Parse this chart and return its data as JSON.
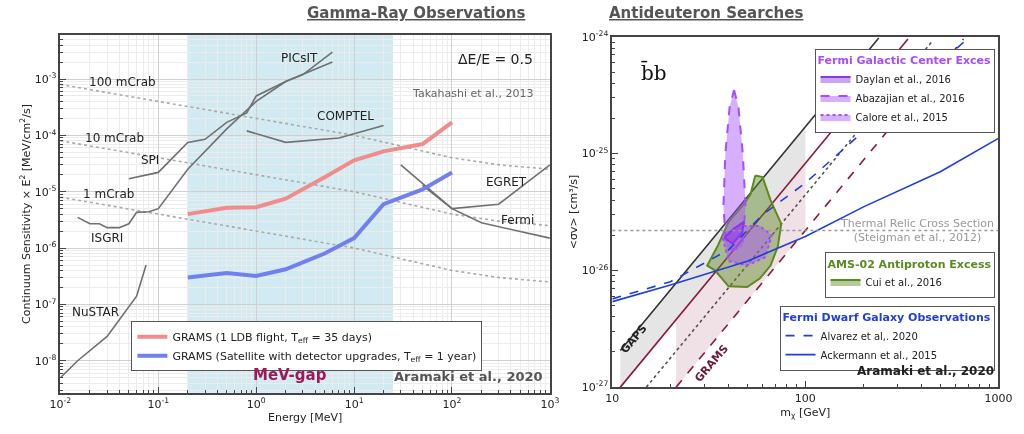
{
  "chart_data": [
    {
      "type": "line",
      "title": "Gamma-Ray Observations",
      "xlabel": "Energy [MeV]",
      "ylabel": "Continuum Sensitivity × E$^{2}$ [MeV/cm$^{2}$/s]",
      "log": "xy",
      "grid": true,
      "legend": "bottom",
      "marker": "none",
      "xlim": [
        0.01,
        1000
      ],
      "ylim": [
        2.7e-09,
        0.006
      ],
      "xticks": [
        {
          "value": 0.01,
          "label": "10$^{-2}$"
        },
        {
          "value": 0.1,
          "label": "10$^{-1}$"
        },
        {
          "value": 1,
          "label": "10$^{0}$"
        },
        {
          "value": 10,
          "label": "10$^{1}$"
        },
        {
          "value": 100,
          "label": "10$^{2}$"
        },
        {
          "value": 1000,
          "label": "10$^{3}$"
        }
      ],
      "yticks": [
        {
          "value": 1e-08,
          "label": "10$^{-8}$"
        },
        {
          "value": 1e-07,
          "label": "10$^{-7}$"
        },
        {
          "value": 1e-06,
          "label": "10$^{-6}$"
        },
        {
          "value": 1e-05,
          "label": "10$^{-5}$"
        },
        {
          "value": 0.0001,
          "label": "10$^{-4}$"
        },
        {
          "value": 0.001,
          "label": "10$^{-3}$"
        }
      ],
      "bands": [
        {
          "axis": "x",
          "from": 0.2,
          "to": 25,
          "label": "MeV-gap",
          "color": "#d2eaf2"
        }
      ],
      "series": [
        {
          "color": "#aaaaaa",
          "line_style": "dotted",
          "x": [
            0.01,
            0.1,
            1,
            10,
            100,
            300,
            1000
          ],
          "values": [
            0.0008,
            0.0004,
            0.0002,
            0.0001,
            4e-05,
            3e-05,
            2.5e-05
          ]
        },
        {
          "color": "#aaaaaa",
          "line_style": "dotted",
          "x": [
            0.01,
            0.1,
            1,
            10,
            100,
            300,
            1000
          ],
          "values": [
            8e-05,
            4e-05,
            2e-05,
            1e-05,
            4e-06,
            3e-06,
            2.5e-06
          ]
        },
        {
          "color": "#aaaaaa",
          "line_style": "dotted",
          "x": [
            0.01,
            0.1,
            1,
            10,
            100,
            300,
            1000
          ],
          "values": [
            8e-06,
            4e-06,
            2e-06,
            1e-06,
            4e-07,
            3e-07,
            2.5e-07
          ]
        },
        {
          "color": "#707070",
          "x": [
            0.01,
            0.015,
            0.03,
            0.06,
            0.075
          ],
          "values": [
            5e-09,
            1e-08,
            2.7e-08,
            1.4e-07,
            5e-07
          ]
        },
        {
          "color": "#707070",
          "x": [
            0.015,
            0.02,
            0.025,
            0.03,
            0.04,
            0.05,
            0.06,
            0.08,
            0.1,
            0.2,
            0.5,
            1,
            2,
            3,
            6
          ],
          "values": [
            3.5e-06,
            2.7e-06,
            2.7e-06,
            2.3e-06,
            2.3e-06,
            2.7e-06,
            4.3e-06,
            4.4e-06,
            5e-06,
            2.5e-05,
            0.00013,
            0.0004,
            0.0009,
            0.0012,
            0.003
          ]
        },
        {
          "color": "#707070",
          "x": [
            0.05,
            0.1,
            0.2,
            0.3,
            0.5,
            0.8,
            1,
            2,
            6
          ],
          "values": [
            1.7e-05,
            2.2e-05,
            7.5e-05,
            8.5e-05,
            0.00017,
            0.00025,
            0.0005,
            0.0009,
            0.002
          ]
        },
        {
          "color": "#707070",
          "x": [
            0.8,
            2,
            7,
            20
          ],
          "values": [
            0.00012,
            7.5e-05,
            9e-05,
            0.00015
          ]
        },
        {
          "color": "#707070",
          "x": [
            30,
            100,
            300,
            1000
          ],
          "values": [
            3e-05,
            5e-06,
            6e-06,
            3e-05
          ]
        },
        {
          "color": "#707070",
          "x": [
            50,
            100,
            200,
            1000
          ],
          "values": [
            1.3e-05,
            5e-06,
            2.8e-06,
            1.5e-06
          ]
        },
        {
          "name": "GRAMS (1 LDB flight, T$_{eff}$ = 35 days)",
          "color": "#f08c8c",
          "x": [
            0.2,
            0.5,
            1,
            2,
            5,
            10,
            20,
            50,
            100
          ],
          "values": [
            4e-06,
            5.2e-06,
            5.3e-06,
            7.5e-06,
            1.8e-05,
            3.6e-05,
            5.2e-05,
            7e-05,
            0.00017
          ]
        },
        {
          "name": "GRAMS (Satellite with detector upgrades, T$_{eff}$ = 1 year)",
          "color": "#7080f0",
          "x": [
            0.2,
            0.5,
            1,
            2,
            5,
            10,
            20,
            50,
            100
          ],
          "values": [
            3e-07,
            3.6e-07,
            3.2e-07,
            4.2e-07,
            8e-07,
            1.5e-06,
            6e-06,
            1.1e-05,
            2.2e-05
          ]
        }
      ],
      "annotations": [
        "ΔE/E = 0.5",
        "Takahashi et al., 2013",
        "Aramaki et al., 2020",
        "100 mCrab",
        "10 mCrab",
        "1 mCrab",
        "SPI",
        "ISGRI",
        "NuSTAR",
        "PICsIT",
        "COMPTEL",
        "EGRET",
        "Fermi"
      ]
    },
    {
      "type": "line",
      "title": "Antideuteron Searches",
      "xlabel": "m$_{χ}$ [GeV]",
      "ylabel": "<σv> [cm³/s]",
      "log": "xy",
      "grid": false,
      "legend": "right",
      "marker": "none",
      "xlim": [
        10,
        1000
      ],
      "ylim": [
        1e-27,
        1e-24
      ],
      "xticks": [
        10,
        100,
        1000
      ],
      "yticks": [
        {
          "value": 1e-27,
          "label": "10$^{-27}$"
        },
        {
          "value": 1e-26,
          "label": "10$^{-26}$"
        },
        {
          "value": 1e-25,
          "label": "10$^{-25}$"
        },
        {
          "value": 1e-24,
          "label": "10$^{-24}$"
        }
      ],
      "ref_lines": [
        {
          "axis": "y",
          "value": 2.2e-26,
          "label": "Thermal Relic Cross Section\n(Steigman et al., 2012)",
          "color": "#999999",
          "line_style": "dotted"
        }
      ],
      "series": [
        {
          "color": "#333333",
          "x": [
            11,
            100,
            240
          ],
          "values": [
            2.06e-27,
            1.7e-25,
            9.8e-25
          ],
          "lower": [
            1e-27,
            8.3e-26,
            null
          ],
          "upper": [
            2.06e-27,
            1.7e-25,
            null
          ]
        },
        {
          "color": "#8b1a3a",
          "x": [
            11,
            340
          ],
          "values": [
            1e-27,
            9.6e-25
          ]
        },
        {
          "color": "#555555",
          "line_style": "dotted",
          "x": [
            15,
            450
          ],
          "values": [
            1e-27,
            9e-25
          ]
        },
        {
          "color": "#8b1a3a",
          "line_style": "dashed",
          "x": [
            21.4,
            100,
            660
          ],
          "values": [
            1e-27,
            2.2e-26,
            9.6e-25
          ],
          "lower": [
            1e-27,
            2.2e-26,
            null
          ],
          "upper": [
            3.8e-27,
            8.3e-26,
            null
          ]
        },
        {
          "type": "area",
          "name": "Cui et al., 2016",
          "color": "#5a8a20",
          "x": [
            55,
            60,
            66,
            75,
            72,
            66,
            58,
            50,
            40,
            34,
            31,
            35,
            40,
            48,
            52,
            55
          ],
          "values": [
            6.5e-26,
            6.3e-26,
            4e-26,
            2.5e-26,
            1.6e-26,
            1.1e-26,
            8.5e-27,
            7.2e-27,
            7.3e-27,
            1e-26,
            1.1e-26,
            1.6e-26,
            2.6e-26,
            3.7e-26,
            4.5e-26,
            6.5e-26
          ]
        },
        {
          "type": "area",
          "name": "Calore et al., 2015",
          "color": "#a64dff",
          "line_style": "dotted",
          "x": [
            37,
            45,
            58,
            67,
            62,
            50,
            40,
            37
          ],
          "values": [
            2e-26,
            2.4e-26,
            2.4e-26,
            2e-26,
            1.3e-26,
            1.1e-26,
            1.2e-26,
            2e-26
          ]
        },
        {
          "type": "area",
          "name": "Abazajian et al., 2016",
          "color": "#a64dff",
          "line_style": "dashed",
          "x": [
            42.7,
            45,
            47.4,
            49,
            47,
            42,
            39,
            37.6,
            38.5,
            40.5,
            42.7
          ],
          "values": [
            3.5e-25,
            2.5e-25,
            1e-25,
            3.5e-26,
            1.6e-26,
            1.5e-26,
            1.6e-26,
            3.5e-26,
            1e-25,
            2.5e-25,
            3.5e-25
          ]
        },
        {
          "type": "area",
          "name": "Daylan et al., 2016",
          "color": "#8a38e6",
          "x": [
            38,
            43,
            48,
            47,
            42,
            38
          ],
          "values": [
            1.9e-26,
            2.3e-26,
            2.6e-26,
            2.1e-26,
            1.7e-26,
            1.9e-26
          ]
        },
        {
          "name": "Ackermann et al., 2015",
          "color": "#1f3fdd",
          "x": [
            10,
            20,
            50,
            100,
            200,
            500,
            1000
          ],
          "values": [
            5.4e-27,
            7.5e-27,
            1.2e-26,
            1.95e-26,
            3.5e-26,
            7e-26,
            1.35e-25
          ]
        },
        {
          "name": "Alvarez et al,. 2020",
          "color": "#1f3fdd",
          "line_style": "dashed",
          "x": [
            10,
            20,
            40,
            60,
            100,
            660
          ],
          "values": [
            5.7e-27,
            8e-27,
            1.5e-26,
            3e-26,
            5.6e-26,
            9e-25
          ]
        }
      ],
      "annotations": [
        "AMS-02 Antiproton Excess",
        "Fermi Galactic Center Exces",
        "Fermi Dwarf Galaxy Observations",
        "b̄b",
        "Aramaki et al., 2020",
        "GAPS",
        "GRAMS"
      ]
    }
  ]
}
